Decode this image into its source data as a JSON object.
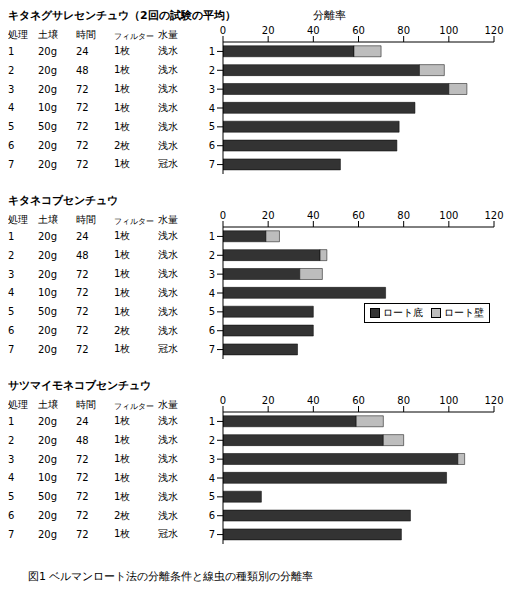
{
  "chart_data": [
    {
      "type": "bar",
      "title": "キタネグサレセンチュウ（2回の試験の平均）",
      "x_label": "分離率",
      "orientation": "horizontal",
      "stacked": true,
      "categories": [
        "1",
        "2",
        "3",
        "4",
        "5",
        "6",
        "7"
      ],
      "series": [
        {
          "name": "ロート底",
          "color": "#333333",
          "values": [
            58,
            87,
            100,
            85,
            78,
            77,
            52
          ]
        },
        {
          "name": "ロート壁",
          "color": "#bdbdbd",
          "values": [
            12,
            11,
            8,
            0,
            0,
            0,
            0
          ]
        }
      ],
      "xlim": [
        0,
        120
      ],
      "xticks": [
        0,
        20,
        40,
        60,
        80,
        100,
        120
      ],
      "conditions": {
        "header": [
          "処理",
          "土壌",
          "時間",
          "フィルター",
          "水量"
        ],
        "rows": [
          [
            "1",
            "20g",
            "24",
            "1枚",
            "浅水"
          ],
          [
            "2",
            "20g",
            "48",
            "1枚",
            "浅水"
          ],
          [
            "3",
            "20g",
            "72",
            "1枚",
            "浅水"
          ],
          [
            "4",
            "10g",
            "72",
            "1枚",
            "浅水"
          ],
          [
            "5",
            "50g",
            "72",
            "1枚",
            "浅水"
          ],
          [
            "6",
            "20g",
            "72",
            "2枚",
            "浅水"
          ],
          [
            "7",
            "20g",
            "72",
            "1枚",
            "冠水"
          ]
        ]
      }
    },
    {
      "type": "bar",
      "title": "キタネコブセンチュウ",
      "orientation": "horizontal",
      "stacked": true,
      "legend": "lower right",
      "categories": [
        "1",
        "2",
        "3",
        "4",
        "5",
        "6",
        "7"
      ],
      "series": [
        {
          "name": "ロート底",
          "color": "#333333",
          "values": [
            19,
            43,
            34,
            72,
            40,
            40,
            33
          ]
        },
        {
          "name": "ロート壁",
          "color": "#bdbdbd",
          "values": [
            6,
            3,
            10,
            0,
            0,
            0,
            0
          ]
        }
      ],
      "xlim": [
        0,
        120
      ],
      "xticks": [
        0,
        20,
        40,
        60,
        80,
        100,
        120
      ],
      "conditions": {
        "header": [
          "処理",
          "土壌",
          "時間",
          "フィルター",
          "水量"
        ],
        "rows": [
          [
            "1",
            "20g",
            "24",
            "1枚",
            "浅水"
          ],
          [
            "2",
            "20g",
            "48",
            "1枚",
            "浅水"
          ],
          [
            "3",
            "20g",
            "72",
            "1枚",
            "浅水"
          ],
          [
            "4",
            "10g",
            "72",
            "1枚",
            "浅水"
          ],
          [
            "5",
            "50g",
            "72",
            "1枚",
            "浅水"
          ],
          [
            "6",
            "20g",
            "72",
            "2枚",
            "浅水"
          ],
          [
            "7",
            "20g",
            "72",
            "1枚",
            "冠水"
          ]
        ]
      }
    },
    {
      "type": "bar",
      "title": "サツマイモネコブセンチュウ",
      "orientation": "horizontal",
      "stacked": true,
      "categories": [
        "1",
        "2",
        "3",
        "4",
        "5",
        "6",
        "7"
      ],
      "series": [
        {
          "name": "ロート底",
          "color": "#333333",
          "values": [
            59,
            71,
            104,
            99,
            17,
            83,
            79
          ]
        },
        {
          "name": "ロート壁",
          "color": "#bdbdbd",
          "values": [
            12,
            9,
            3,
            0,
            0,
            0,
            0
          ]
        }
      ],
      "xlim": [
        0,
        120
      ],
      "xticks": [
        0,
        20,
        40,
        60,
        80,
        100,
        120
      ],
      "conditions": {
        "header": [
          "処理",
          "土壌",
          "時間",
          "フィルター",
          "水量"
        ],
        "rows": [
          [
            "1",
            "20g",
            "24",
            "1枚",
            "浅水"
          ],
          [
            "2",
            "20g",
            "48",
            "1枚",
            "浅水"
          ],
          [
            "3",
            "20g",
            "72",
            "1枚",
            "浅水"
          ],
          [
            "4",
            "10g",
            "72",
            "1枚",
            "浅水"
          ],
          [
            "5",
            "50g",
            "72",
            "1枚",
            "浅水"
          ],
          [
            "6",
            "20g",
            "72",
            "2枚",
            "浅水"
          ],
          [
            "7",
            "20g",
            "72",
            "1枚",
            "冠水"
          ]
        ]
      }
    }
  ],
  "caption": "図1 ベルマンロート法の分離条件と線虫の種類別の分離率"
}
